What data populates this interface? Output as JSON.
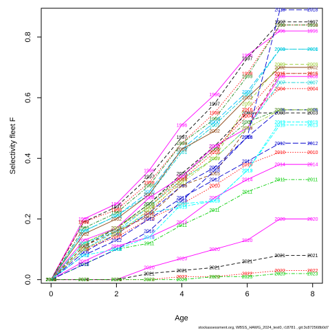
{
  "chart_data": {
    "type": "line",
    "title": "",
    "xlabel": "Age",
    "ylabel": "Selectivity fleet F",
    "x": [
      0,
      1,
      2,
      3,
      4,
      5,
      6,
      7,
      8
    ],
    "xlim": [
      -0.3,
      8.3
    ],
    "ylim": [
      -0.012,
      0.895
    ],
    "x_ticks": [
      "0",
      "2",
      "4",
      "6",
      "8"
    ],
    "y_ticks": [
      "0.0",
      "0.2",
      "0.4",
      "0.6",
      "0.8"
    ],
    "grid": false,
    "legend": "none",
    "series": [
      {
        "name": "1996",
        "color": "#FF00FF",
        "values": [
          0.0,
          0.2,
          0.25,
          0.36,
          0.51,
          0.61,
          0.74,
          0.82,
          0.82
        ]
      },
      {
        "name": "1997",
        "color": "#000000",
        "values": [
          0.0,
          0.19,
          0.24,
          0.34,
          0.47,
          0.58,
          0.73,
          0.85,
          0.85
        ]
      },
      {
        "name": "1998",
        "color": "#FF0000",
        "values": [
          0.0,
          0.19,
          0.23,
          0.32,
          0.45,
          0.55,
          0.68,
          0.84,
          0.84
        ]
      },
      {
        "name": "1999",
        "color": "#228B22",
        "values": [
          0.0,
          0.17,
          0.22,
          0.31,
          0.45,
          0.53,
          0.67,
          0.84,
          0.84
        ]
      },
      {
        "name": "2000",
        "color": "#00BFFF",
        "values": [
          0.0,
          0.16,
          0.21,
          0.29,
          0.43,
          0.52,
          0.62,
          0.76,
          0.76
        ]
      },
      {
        "name": "2001",
        "color": "#00CED1",
        "values": [
          0.0,
          0.16,
          0.21,
          0.28,
          0.42,
          0.51,
          0.61,
          0.76,
          0.76
        ]
      },
      {
        "name": "2002",
        "color": "#8B4513",
        "values": [
          0.0,
          0.15,
          0.2,
          0.28,
          0.43,
          0.49,
          0.6,
          0.7,
          0.7
        ]
      },
      {
        "name": "2003",
        "color": "#000000",
        "values": [
          0.0,
          0.11,
          0.17,
          0.25,
          0.35,
          0.44,
          0.55,
          0.55,
          0.55
        ]
      },
      {
        "name": "2004",
        "color": "#FF0000",
        "values": [
          0.0,
          0.12,
          0.17,
          0.24,
          0.34,
          0.43,
          0.54,
          0.63,
          0.63
        ]
      },
      {
        "name": "2005",
        "color": "#228B22",
        "values": [
          0.0,
          0.12,
          0.17,
          0.25,
          0.34,
          0.43,
          0.52,
          0.56,
          0.56
        ]
      },
      {
        "name": "2006",
        "color": "#0000CD",
        "values": [
          0.0,
          0.09,
          0.15,
          0.22,
          0.31,
          0.37,
          0.47,
          0.56,
          0.56
        ]
      },
      {
        "name": "2007",
        "color": "#00CED1",
        "values": [
          0.0,
          0.1,
          0.16,
          0.24,
          0.33,
          0.4,
          0.5,
          0.65,
          0.65
        ]
      },
      {
        "name": "2008",
        "color": "#FF00FF",
        "values": [
          0.0,
          0.13,
          0.17,
          0.27,
          0.34,
          0.44,
          0.5,
          0.67,
          0.67
        ]
      },
      {
        "name": "2009",
        "color": "#9ACD32",
        "values": [
          0.0,
          0.12,
          0.17,
          0.24,
          0.33,
          0.4,
          0.58,
          0.71,
          0.71
        ]
      },
      {
        "name": "2010",
        "color": "#FF0000",
        "values": [
          0.0,
          0.1,
          0.14,
          0.2,
          0.25,
          0.31,
          0.38,
          0.42,
          0.42
        ]
      },
      {
        "name": "2011",
        "color": "#00CD00",
        "values": [
          0.0,
          0.05,
          0.1,
          0.12,
          0.18,
          0.23,
          0.29,
          0.33,
          0.33
        ]
      },
      {
        "name": "2012",
        "color": "#0000CD",
        "values": [
          0.0,
          0.08,
          0.13,
          0.2,
          0.27,
          0.33,
          0.39,
          0.45,
          0.45
        ]
      },
      {
        "name": "2013",
        "color": "#00FFFF",
        "values": [
          0.0,
          0.12,
          0.16,
          0.22,
          0.24,
          0.26,
          0.36,
          0.51,
          0.51
        ]
      },
      {
        "name": "2014",
        "color": "#FF00FF",
        "values": [
          0.0,
          0.06,
          0.11,
          0.14,
          0.19,
          0.27,
          0.33,
          0.38,
          0.38
        ]
      },
      {
        "name": "2015",
        "color": "#8B4513",
        "values": [
          0.0,
          0.11,
          0.16,
          0.21,
          0.31,
          0.35,
          0.5,
          0.68,
          0.68
        ]
      },
      {
        "name": "2016",
        "color": "#FF0000",
        "values": [
          0.0,
          0.1,
          0.15,
          0.22,
          0.33,
          0.42,
          0.56,
          0.68,
          0.68
        ]
      },
      {
        "name": "2017",
        "color": "#9ACD32",
        "values": [
          0.0,
          0.1,
          0.15,
          0.23,
          0.32,
          0.4,
          0.5,
          0.56,
          0.56
        ]
      },
      {
        "name": "2018",
        "color": "#0000CD",
        "values": [
          0.0,
          0.05,
          0.1,
          0.16,
          0.26,
          0.36,
          0.47,
          0.89,
          0.89
        ]
      },
      {
        "name": "2019",
        "color": "#00FFFF",
        "values": [
          0.0,
          0.08,
          0.1,
          0.14,
          0.25,
          0.26,
          0.36,
          0.52,
          0.52
        ]
      },
      {
        "name": "2020",
        "color": "#FF00FF",
        "values": [
          0.0,
          0.0,
          0.0,
          0.04,
          0.07,
          0.1,
          0.13,
          0.2,
          0.2
        ]
      },
      {
        "name": "2021",
        "color": "#000000",
        "values": [
          0.0,
          0.0,
          0.0,
          0.02,
          0.03,
          0.04,
          0.06,
          0.08,
          0.08
        ]
      },
      {
        "name": "2022",
        "color": "#FF0000",
        "values": [
          0.0,
          0.0,
          0.0,
          0.0,
          0.01,
          0.01,
          0.02,
          0.03,
          0.03
        ]
      },
      {
        "name": "2023",
        "color": "#00CD00",
        "values": [
          0.0,
          0.0,
          0.0,
          0.0,
          0.0,
          0.01,
          0.01,
          0.02,
          0.02
        ]
      }
    ],
    "line_styles": [
      "solid",
      "dashed",
      "dotted",
      "dashdot",
      "longdash",
      "twodash"
    ]
  },
  "footer": "stockassessment.org, WBSS_HAWG_2024_test0, r18781 , git:3c872568b0d7"
}
